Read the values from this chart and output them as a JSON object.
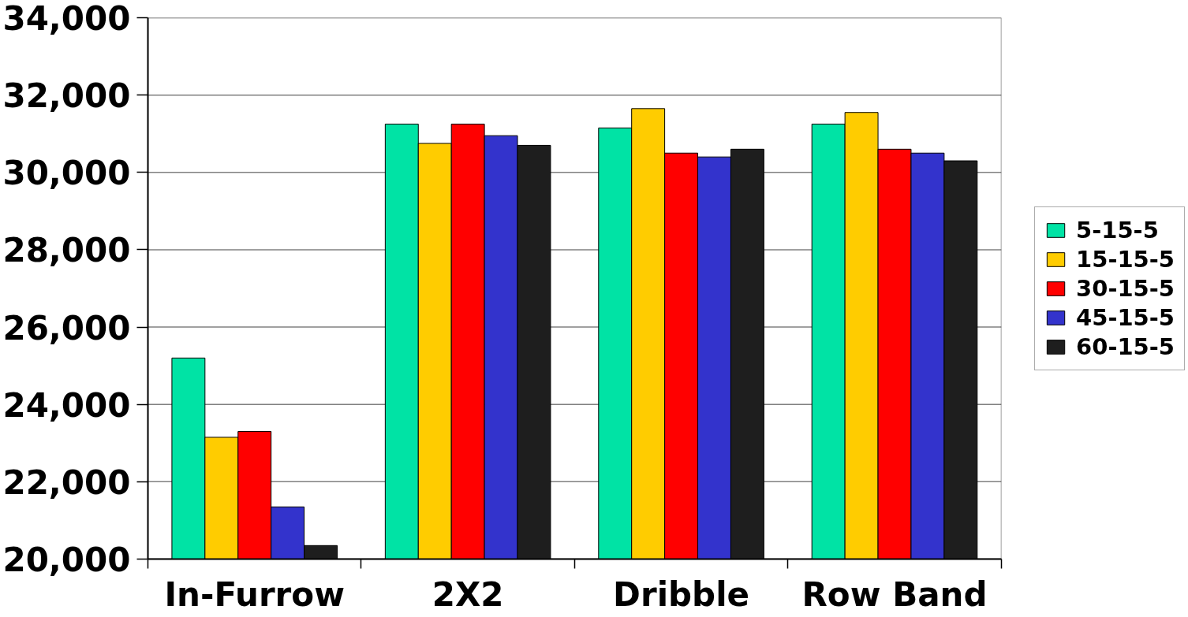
{
  "chart_data": {
    "type": "bar",
    "categories": [
      "In-Furrow",
      "2X2",
      "Dribble",
      "Row Band"
    ],
    "series": [
      {
        "name": "5-15-5",
        "color": "#00e3a5",
        "values": [
          25200,
          31250,
          31150,
          31250
        ]
      },
      {
        "name": "15-15-5",
        "color": "#ffcc00",
        "values": [
          23150,
          30750,
          31650,
          31550
        ]
      },
      {
        "name": "30-15-5",
        "color": "#ff0000",
        "values": [
          23300,
          31250,
          30500,
          30600
        ]
      },
      {
        "name": "45-15-5",
        "color": "#3333cc",
        "values": [
          21350,
          30950,
          30400,
          30500
        ]
      },
      {
        "name": "60-15-5",
        "color": "#1e1e1e",
        "values": [
          20350,
          30700,
          30600,
          30300
        ]
      }
    ],
    "ylim": [
      20000,
      34000
    ],
    "yticks": [
      {
        "value": 20000,
        "label": "20,000"
      },
      {
        "value": 22000,
        "label": "22,000"
      },
      {
        "value": 24000,
        "label": "24,000"
      },
      {
        "value": 26000,
        "label": "26,000"
      },
      {
        "value": 28000,
        "label": "28,000"
      },
      {
        "value": 30000,
        "label": "30,000"
      },
      {
        "value": 32000,
        "label": "32,000"
      },
      {
        "value": 34000,
        "label": "34,000"
      }
    ],
    "grid": "y",
    "legend": "right"
  }
}
